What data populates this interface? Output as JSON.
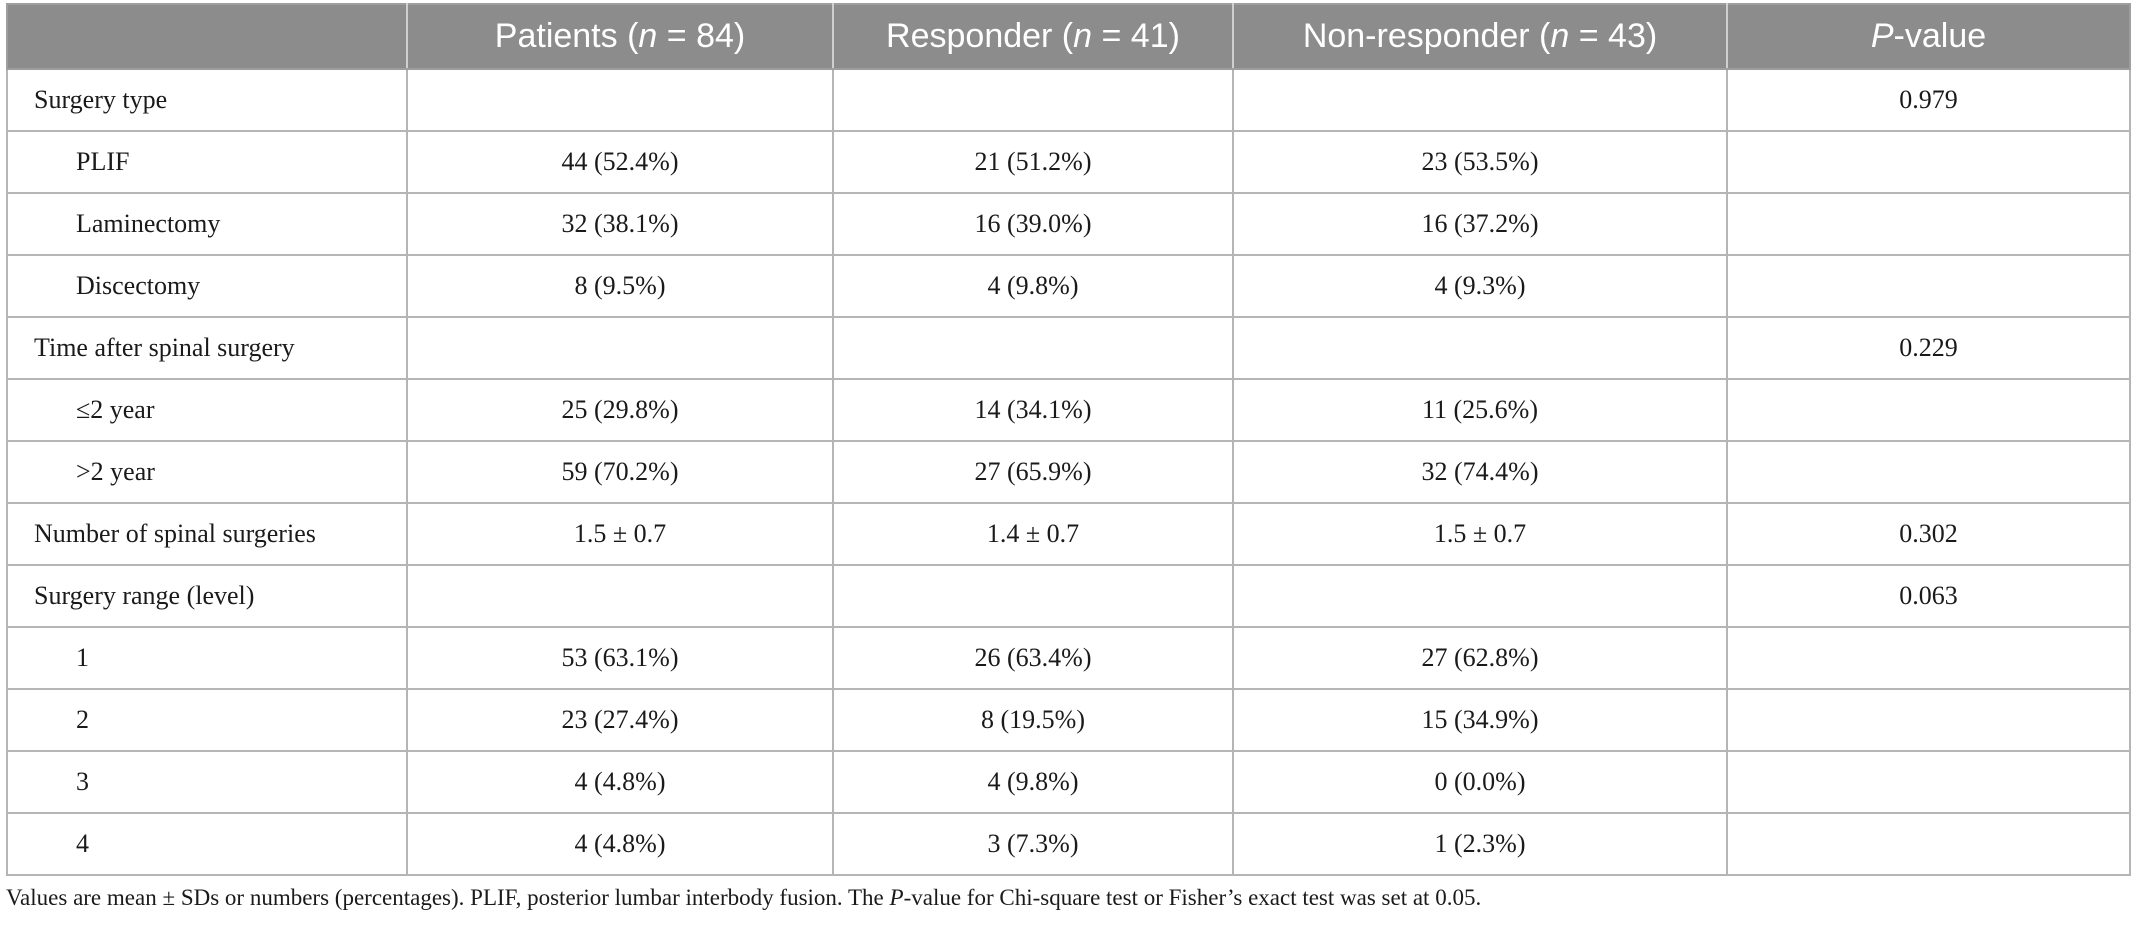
{
  "header": {
    "col1": "",
    "patients_prefix": "Patients (",
    "patients_n": "n",
    "patients_suffix": " = 84)",
    "responder_prefix": "Responder (",
    "responder_n": "n",
    "responder_suffix": " = 41)",
    "nonresponder_prefix": "Non-responder (",
    "nonresponder_n": "n",
    "nonresponder_suffix": " = 43)",
    "p_italic": "P",
    "p_suffix": "-value"
  },
  "rows": [
    {
      "label": "Surgery type",
      "patients": "",
      "responder": "",
      "nonresponder": "",
      "p": "0.979"
    },
    {
      "label": "PLIF",
      "patients": "44 (52.4%)",
      "responder": "21 (51.2%)",
      "nonresponder": "23 (53.5%)",
      "p": ""
    },
    {
      "label": "Laminectomy",
      "patients": "32 (38.1%)",
      "responder": "16 (39.0%)",
      "nonresponder": "16 (37.2%)",
      "p": ""
    },
    {
      "label": "Discectomy",
      "patients": "8 (9.5%)",
      "responder": "4 (9.8%)",
      "nonresponder": "4 (9.3%)",
      "p": ""
    },
    {
      "label": "Time after spinal surgery",
      "patients": "",
      "responder": "",
      "nonresponder": "",
      "p": "0.229"
    },
    {
      "label": "≤2 year",
      "patients": "25 (29.8%)",
      "responder": "14 (34.1%)",
      "nonresponder": "11 (25.6%)",
      "p": ""
    },
    {
      "label": ">2 year",
      "patients": "59 (70.2%)",
      "responder": "27 (65.9%)",
      "nonresponder": "32 (74.4%)",
      "p": ""
    },
    {
      "label": "Number of spinal surgeries",
      "patients": "1.5 ± 0.7",
      "responder": "1.4 ± 0.7",
      "nonresponder": "1.5 ± 0.7",
      "p": "0.302"
    },
    {
      "label": "Surgery range (level)",
      "patients": "",
      "responder": "",
      "nonresponder": "",
      "p": "0.063"
    },
    {
      "label": "1",
      "patients": "53 (63.1%)",
      "responder": "26 (63.4%)",
      "nonresponder": "27 (62.8%)",
      "p": ""
    },
    {
      "label": "2",
      "patients": "23 (27.4%)",
      "responder": "8 (19.5%)",
      "nonresponder": "15 (34.9%)",
      "p": ""
    },
    {
      "label": "3",
      "patients": "4 (4.8%)",
      "responder": "4 (9.8%)",
      "nonresponder": "0 (0.0%)",
      "p": ""
    },
    {
      "label": "4",
      "patients": "4 (4.8%)",
      "responder": "3 (7.3%)",
      "nonresponder": "1 (2.3%)",
      "p": ""
    }
  ],
  "footnote": {
    "part1": "Values are mean ± SDs or numbers (percentages). PLIF, posterior lumbar interbody fusion. The ",
    "p_italic": "P",
    "part2": "-value for Chi-square test or Fisher’s exact test was set at 0.05."
  }
}
